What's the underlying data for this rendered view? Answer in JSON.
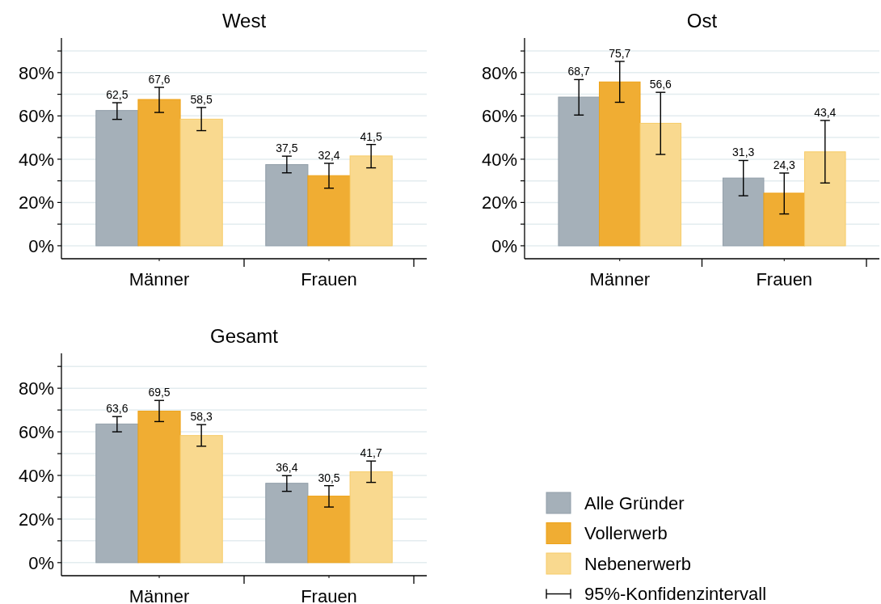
{
  "chart_data": [
    {
      "type": "bar",
      "title": "West",
      "categories": [
        "Männer",
        "Frauen"
      ],
      "ylim": [
        -6,
        96
      ],
      "yticks": [
        {
          "value": 0,
          "label": "0%"
        },
        {
          "value": 10,
          "label": null
        },
        {
          "value": 20,
          "label": "20%"
        },
        {
          "value": 30,
          "label": null
        },
        {
          "value": 40,
          "label": "40%"
        },
        {
          "value": 50,
          "label": null
        },
        {
          "value": 60,
          "label": "60%"
        },
        {
          "value": 70,
          "label": null
        },
        {
          "value": 80,
          "label": "80%"
        },
        {
          "value": 90,
          "label": null
        }
      ],
      "grid": "y",
      "legend": false,
      "series": [
        {
          "color": "#a5b0b9",
          "values": [
            62.5,
            37.5
          ],
          "value_labels": [
            "62,5",
            "37,5"
          ],
          "errors": [
            [
              58.4,
              66.1
            ],
            [
              33.7,
              41.4
            ]
          ]
        },
        {
          "color": "#f0ad33",
          "values": [
            67.6,
            32.4
          ],
          "value_labels": [
            "67,6",
            "32,4"
          ],
          "errors": [
            [
              61.6,
              73.2
            ],
            [
              26.6,
              38.1
            ]
          ]
        },
        {
          "color": "#f9d98f",
          "values": [
            58.5,
            41.5
          ],
          "value_labels": [
            "58,5",
            "41,5"
          ],
          "errors": [
            [
              53.2,
              63.9
            ],
            [
              36.0,
              46.8
            ]
          ]
        }
      ]
    },
    {
      "type": "bar",
      "title": "Ost",
      "categories": [
        "Männer",
        "Frauen"
      ],
      "ylim": [
        -6,
        96
      ],
      "yticks": [
        {
          "value": 0,
          "label": "0%"
        },
        {
          "value": 10,
          "label": null
        },
        {
          "value": 20,
          "label": "20%"
        },
        {
          "value": 30,
          "label": null
        },
        {
          "value": 40,
          "label": "40%"
        },
        {
          "value": 50,
          "label": null
        },
        {
          "value": 60,
          "label": "60%"
        },
        {
          "value": 70,
          "label": null
        },
        {
          "value": 80,
          "label": "80%"
        },
        {
          "value": 90,
          "label": null
        }
      ],
      "grid": "y",
      "legend": false,
      "series": [
        {
          "color": "#a5b0b9",
          "values": [
            68.7,
            31.3
          ],
          "value_labels": [
            "68,7",
            "31,3"
          ],
          "errors": [
            [
              60.4,
              76.8
            ],
            [
              23.1,
              39.4
            ]
          ]
        },
        {
          "color": "#f0ad33",
          "values": [
            75.7,
            24.3
          ],
          "value_labels": [
            "75,7",
            "24,3"
          ],
          "errors": [
            [
              66.3,
              85.2
            ],
            [
              14.7,
              33.6
            ]
          ]
        },
        {
          "color": "#f9d98f",
          "values": [
            56.6,
            43.4
          ],
          "value_labels": [
            "56,6",
            "43,4"
          ],
          "errors": [
            [
              42.2,
              70.9
            ],
            [
              29.0,
              57.9
            ]
          ]
        }
      ]
    },
    {
      "type": "bar",
      "title": "Gesamt",
      "categories": [
        "Männer",
        "Frauen"
      ],
      "ylim": [
        -6,
        96
      ],
      "yticks": [
        {
          "value": 0,
          "label": "0%"
        },
        {
          "value": 10,
          "label": null
        },
        {
          "value": 20,
          "label": "20%"
        },
        {
          "value": 30,
          "label": null
        },
        {
          "value": 40,
          "label": "40%"
        },
        {
          "value": 50,
          "label": null
        },
        {
          "value": 60,
          "label": "60%"
        },
        {
          "value": 70,
          "label": null
        },
        {
          "value": 80,
          "label": "80%"
        },
        {
          "value": 90,
          "label": null
        }
      ],
      "grid": "y",
      "legend": "right",
      "annotations": [
        "95%-Konfidenzintervall"
      ],
      "series": [
        {
          "name": "Alle Gründer",
          "color": "#a5b0b9",
          "values": [
            63.6,
            36.4
          ],
          "value_labels": [
            "63,6",
            "36,4"
          ],
          "errors": [
            [
              60.0,
              67.0
            ],
            [
              32.7,
              39.9
            ]
          ]
        },
        {
          "name": "Vollerwerb",
          "color": "#f0ad33",
          "values": [
            69.5,
            30.5
          ],
          "value_labels": [
            "69,5",
            "30,5"
          ],
          "errors": [
            [
              64.7,
              74.4
            ],
            [
              25.5,
              35.3
            ]
          ]
        },
        {
          "name": "Nebenerwerb",
          "color": "#f9d98f",
          "values": [
            58.3,
            41.7
          ],
          "value_labels": [
            "58,3",
            "41,7"
          ],
          "errors": [
            [
              53.4,
              63.3
            ],
            [
              36.8,
              46.6
            ]
          ]
        }
      ]
    }
  ]
}
